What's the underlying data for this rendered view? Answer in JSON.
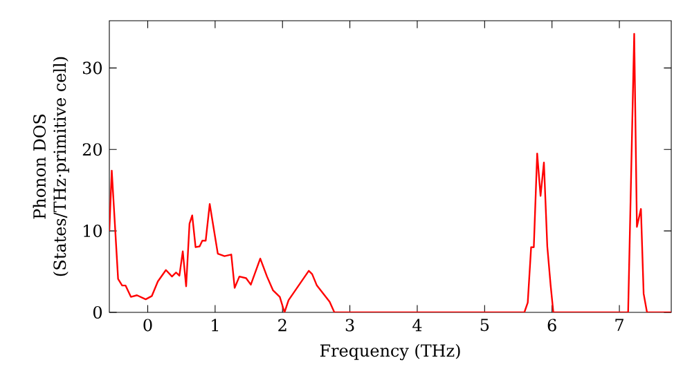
{
  "chart_data": {
    "type": "line",
    "xlabel": "Frequency (THz)",
    "ylabel": "Phonon DOS\n(States/THz·primitive cell)",
    "xlim": [
      -0.57,
      7.77
    ],
    "ylim": [
      0,
      35.8
    ],
    "xticks": [
      0,
      1,
      2,
      3,
      4,
      5,
      6,
      7
    ],
    "yticks": [
      0,
      10,
      20,
      30
    ],
    "grid": false,
    "marker": "none",
    "line_style": "solid",
    "series": [
      {
        "color": "#ff0000",
        "x": [
          -0.57,
          -0.534,
          -0.44,
          -0.38,
          -0.33,
          -0.25,
          -0.16,
          -0.03,
          0.06,
          0.15,
          0.27,
          0.36,
          0.42,
          0.47,
          0.52,
          0.57,
          0.62,
          0.66,
          0.71,
          0.77,
          0.81,
          0.86,
          0.92,
          1.04,
          1.14,
          1.24,
          1.29,
          1.36,
          1.46,
          1.53,
          1.67,
          1.77,
          1.86,
          1.96,
          2.03,
          2.09,
          2.39,
          2.44,
          2.51,
          2.7,
          2.77,
          5.59,
          5.64,
          5.69,
          5.73,
          5.78,
          5.83,
          5.88,
          5.93,
          5.98,
          6.02,
          7.13,
          7.22,
          7.26,
          7.32,
          7.36,
          7.41,
          7.77
        ],
        "values": [
          10,
          17.4,
          4.1,
          3.3,
          3.3,
          1.9,
          2.1,
          1.6,
          2.0,
          3.8,
          5.2,
          4.4,
          4.9,
          4.5,
          7.5,
          3.2,
          10.9,
          11.9,
          8.0,
          8.1,
          8.8,
          8.8,
          13.3,
          7.2,
          6.9,
          7.1,
          3.0,
          4.4,
          4.2,
          3.4,
          6.6,
          4.4,
          2.7,
          1.9,
          0,
          1.5,
          5.1,
          4.7,
          3.3,
          1.3,
          0,
          0,
          1.2,
          8.0,
          8.0,
          19.5,
          14.3,
          18.4,
          8.1,
          3.3,
          0,
          0,
          34.2,
          10.5,
          12.7,
          2.3,
          0,
          0
        ]
      }
    ]
  }
}
